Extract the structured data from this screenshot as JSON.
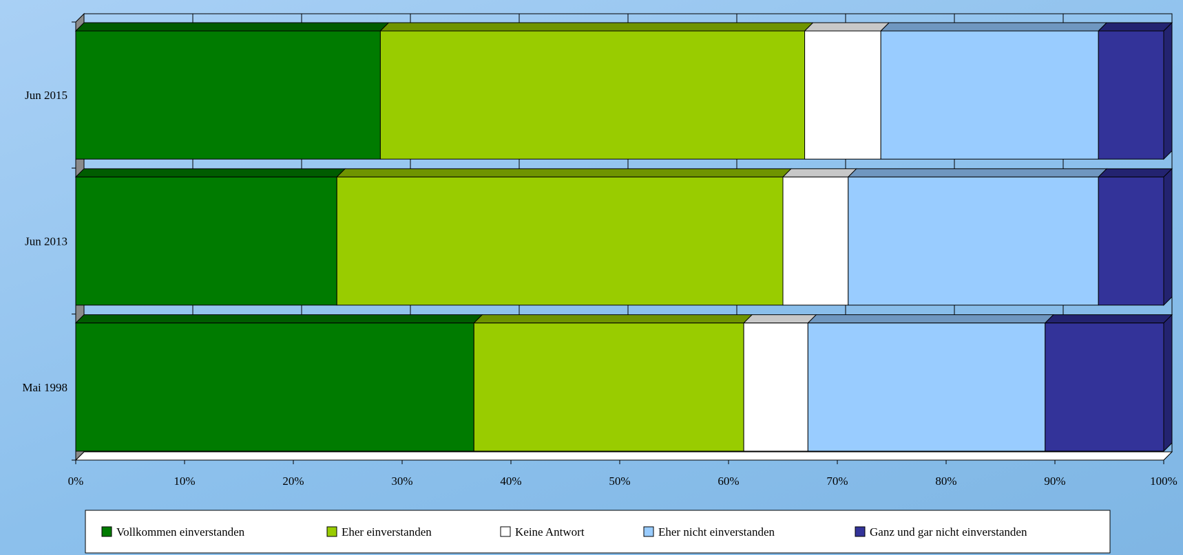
{
  "chart_data": {
    "type": "bar",
    "orientation": "horizontal",
    "stacked": "percent",
    "categories": [
      "Jun 2015",
      "Jun 2013",
      "Mai 1998"
    ],
    "x_ticks": [
      "0%",
      "10%",
      "20%",
      "30%",
      "40%",
      "50%",
      "60%",
      "70%",
      "80%",
      "90%",
      "100%"
    ],
    "xlim": [
      0,
      100
    ],
    "grid": true,
    "legend_position": "bottom",
    "series": [
      {
        "name": "Vollkommen einverstanden",
        "values": [
          28,
          24,
          36.6
        ],
        "color": "#007b00",
        "top_color": "#005c00"
      },
      {
        "name": "Eher einverstanden",
        "values": [
          39,
          41,
          24.8
        ],
        "color": "#99cc00",
        "top_color": "#6f9400"
      },
      {
        "name": "Keine Antwort",
        "values": [
          7,
          6,
          5.9
        ],
        "color": "#ffffff",
        "top_color": "#c8c8c8"
      },
      {
        "name": "Eher nicht einverstanden",
        "values": [
          20,
          23,
          21.8
        ],
        "color": "#99ccff",
        "top_color": "#6f97c0"
      },
      {
        "name": "Ganz und gar nicht einverstanden",
        "values": [
          6,
          6,
          10.9
        ],
        "color": "#333399",
        "top_color": "#232370"
      }
    ]
  }
}
